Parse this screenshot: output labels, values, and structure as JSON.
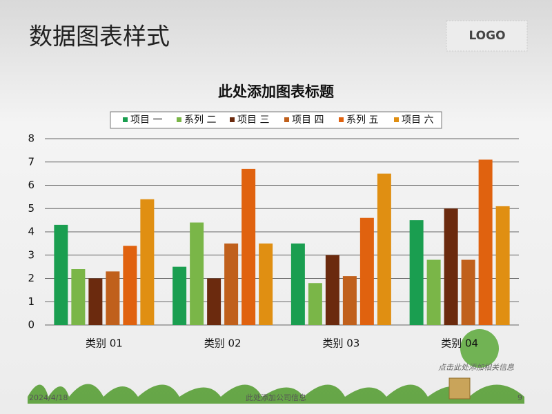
{
  "header": {
    "title": "数据图表样式",
    "logo": "LOGO"
  },
  "chart_data": {
    "type": "bar",
    "title": "此处添加图表标题",
    "categories": [
      "类别 01",
      "类别 02",
      "类别 03",
      "类别 04"
    ],
    "series": [
      {
        "name": "项目 一",
        "color": "#1a9e50",
        "values": [
          4.3,
          2.5,
          3.5,
          4.5
        ]
      },
      {
        "name": "系列 二",
        "color": "#7ab648",
        "values": [
          2.4,
          4.4,
          1.8,
          2.8
        ]
      },
      {
        "name": "项目 三",
        "color": "#6b2a0e",
        "values": [
          2,
          2,
          3,
          5
        ]
      },
      {
        "name": "项目 四",
        "color": "#c0601c",
        "values": [
          2.3,
          3.5,
          2.1,
          2.8
        ]
      },
      {
        "name": "系列 五",
        "color": "#e0620f",
        "values": [
          3.4,
          6.7,
          4.6,
          7.1
        ]
      },
      {
        "name": "项目 六",
        "color": "#e08f12",
        "values": [
          5.4,
          3.5,
          6.5,
          5.1
        ]
      }
    ],
    "ylim": [
      0,
      8
    ],
    "yticks": [
      0,
      1,
      2,
      3,
      4,
      5,
      6,
      7,
      8
    ],
    "grid": true,
    "legend": "top"
  },
  "note": "点击此处添加相关信息",
  "footer": {
    "date": "2024/4/18",
    "company": "此处添加公司信息",
    "page": "9"
  }
}
